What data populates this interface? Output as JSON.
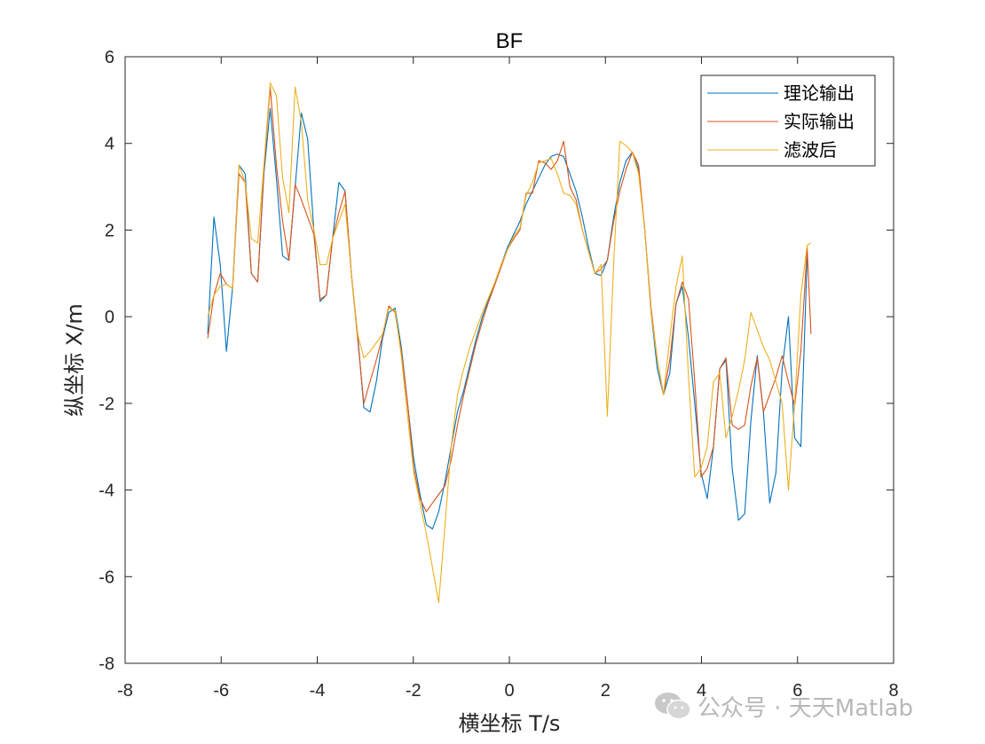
{
  "chart_data": {
    "type": "line",
    "title": "BF",
    "xlabel": "横坐标 T/s",
    "ylabel": "纵坐标 X/m",
    "xlim": [
      -8,
      8
    ],
    "ylim": [
      -8,
      6
    ],
    "xticks": [
      -8,
      -6,
      -4,
      -2,
      0,
      2,
      4,
      6,
      8
    ],
    "yticks": [
      -8,
      -6,
      -4,
      -2,
      0,
      2,
      4,
      6
    ],
    "xtick_labels": [
      "-8",
      "-6",
      "-4",
      "-2",
      "0",
      "2",
      "4",
      "6",
      "8"
    ],
    "ytick_labels": [
      "-8",
      "-6",
      "-4",
      "-2",
      "0",
      "2",
      "4",
      "6"
    ],
    "grid": false,
    "legend_position": "top-right",
    "series": [
      {
        "name": "理论输出",
        "color": "#0072BD",
        "x": [
          -6.28,
          -6.15,
          -6.02,
          -5.89,
          -5.76,
          -5.63,
          -5.5,
          -5.37,
          -5.24,
          -5.11,
          -4.98,
          -4.85,
          -4.72,
          -4.59,
          -4.46,
          -4.33,
          -4.2,
          -4.07,
          -3.94,
          -3.81,
          -3.68,
          -3.55,
          -3.42,
          -3.29,
          -3.16,
          -3.03,
          -2.9,
          -2.77,
          -2.64,
          -2.51,
          -2.38,
          -2.25,
          -2.12,
          -1.99,
          -1.86,
          -1.73,
          -1.6,
          -1.47,
          -1.34,
          -1.21,
          -1.08,
          -0.95,
          -0.82,
          -0.69,
          -0.56,
          -0.43,
          -0.3,
          -0.17,
          -0.04,
          0.09,
          0.22,
          0.35,
          0.48,
          0.61,
          0.74,
          0.87,
          1.0,
          1.13,
          1.26,
          1.39,
          1.52,
          1.65,
          1.78,
          1.91,
          2.04,
          2.17,
          2.3,
          2.43,
          2.56,
          2.69,
          2.82,
          2.95,
          3.08,
          3.21,
          3.34,
          3.47,
          3.6,
          3.73,
          3.86,
          3.99,
          4.12,
          4.25,
          4.38,
          4.51,
          4.64,
          4.77,
          4.9,
          5.03,
          5.16,
          5.29,
          5.42,
          5.55,
          5.68,
          5.81,
          5.94,
          6.07,
          6.2
        ],
        "y": [
          -0.4,
          2.3,
          1.2,
          -0.8,
          0.7,
          3.5,
          3.3,
          1.0,
          0.8,
          3.3,
          4.8,
          3.2,
          1.4,
          1.3,
          3.0,
          4.7,
          4.1,
          2.0,
          0.35,
          0.5,
          1.8,
          3.1,
          2.9,
          1.0,
          -0.4,
          -2.1,
          -2.2,
          -1.5,
          -0.5,
          0.1,
          0.2,
          -0.7,
          -2.0,
          -3.3,
          -4.1,
          -4.8,
          -4.9,
          -4.5,
          -3.8,
          -3.0,
          -2.2,
          -1.7,
          -1.1,
          -0.5,
          0.0,
          0.4,
          0.8,
          1.2,
          1.6,
          1.9,
          2.2,
          2.6,
          2.9,
          3.2,
          3.5,
          3.7,
          3.75,
          3.7,
          3.3,
          2.9,
          2.3,
          1.6,
          1.0,
          0.95,
          1.3,
          2.3,
          3.1,
          3.6,
          3.8,
          3.4,
          2.0,
          0.1,
          -1.2,
          -1.8,
          -1.3,
          0.3,
          0.7,
          -0.5,
          -2.0,
          -3.6,
          -4.2,
          -3.0,
          -1.2,
          -1.0,
          -3.5,
          -4.7,
          -4.55,
          -2.4,
          -0.9,
          -2.2,
          -4.3,
          -3.6,
          -1.2,
          0.0,
          -2.8,
          -3.0,
          1.4
        ]
      },
      {
        "name": "实际输出",
        "color": "#D95319",
        "x": [
          -6.28,
          -6.15,
          -6.02,
          -5.89,
          -5.76,
          -5.63,
          -5.5,
          -5.37,
          -5.24,
          -5.11,
          -4.98,
          -4.85,
          -4.72,
          -4.59,
          -4.46,
          -4.33,
          -4.2,
          -4.07,
          -3.94,
          -3.81,
          -3.68,
          -3.55,
          -3.42,
          -3.29,
          -3.16,
          -3.03,
          -2.9,
          -2.77,
          -2.64,
          -2.51,
          -2.38,
          -2.25,
          -2.12,
          -1.99,
          -1.86,
          -1.73,
          -1.6,
          -1.47,
          -1.34,
          -1.21,
          -1.08,
          -0.95,
          -0.82,
          -0.69,
          -0.56,
          -0.43,
          -0.3,
          -0.17,
          -0.04,
          0.09,
          0.22,
          0.35,
          0.48,
          0.61,
          0.74,
          0.87,
          1.0,
          1.13,
          1.26,
          1.39,
          1.52,
          1.65,
          1.78,
          1.91,
          2.04,
          2.17,
          2.3,
          2.43,
          2.56,
          2.69,
          2.82,
          2.95,
          3.08,
          3.21,
          3.34,
          3.47,
          3.6,
          3.73,
          3.86,
          3.99,
          4.12,
          4.25,
          4.38,
          4.51,
          4.64,
          4.77,
          4.9,
          5.03,
          5.16,
          5.29,
          5.42,
          5.55,
          5.68,
          5.81,
          5.94,
          6.07,
          6.2,
          6.28
        ],
        "y": [
          -0.5,
          0.5,
          1.0,
          0.75,
          0.65,
          3.3,
          3.1,
          1.0,
          0.8,
          3.4,
          5.3,
          3.5,
          2.2,
          1.3,
          3.05,
          2.7,
          2.3,
          1.9,
          0.4,
          0.5,
          1.8,
          2.4,
          2.9,
          1.0,
          -0.5,
          -2.0,
          -1.5,
          -1.0,
          -0.45,
          0.25,
          0.1,
          -0.8,
          -2.0,
          -3.5,
          -4.2,
          -4.5,
          -4.3,
          -4.1,
          -3.9,
          -3.3,
          -2.5,
          -1.8,
          -1.2,
          -0.6,
          -0.1,
          0.35,
          0.75,
          1.15,
          1.55,
          1.8,
          2.0,
          2.85,
          2.85,
          3.6,
          3.55,
          3.4,
          3.6,
          4.05,
          3.0,
          2.7,
          2.0,
          1.5,
          1.0,
          1.1,
          1.3,
          2.2,
          2.9,
          3.4,
          3.8,
          3.5,
          2.0,
          0.2,
          -1.0,
          -1.8,
          -1.0,
          0.3,
          0.8,
          0.4,
          -1.5,
          -3.7,
          -3.5,
          -3.0,
          -1.2,
          -0.95,
          -2.5,
          -2.6,
          -2.5,
          -1.6,
          -0.95,
          -2.2,
          -1.8,
          -1.4,
          -0.9,
          -1.5,
          -2.05,
          -0.8,
          1.6,
          -0.4
        ]
      },
      {
        "name": "滤波后",
        "color": "#EDB120",
        "x": [
          -6.28,
          -6.15,
          -6.02,
          -5.89,
          -5.76,
          -5.63,
          -5.5,
          -5.37,
          -5.24,
          -5.11,
          -4.98,
          -4.85,
          -4.72,
          -4.59,
          -4.46,
          -4.33,
          -4.2,
          -4.07,
          -3.94,
          -3.81,
          -3.68,
          -3.55,
          -3.42,
          -3.29,
          -3.16,
          -3.03,
          -2.9,
          -2.77,
          -2.64,
          -2.51,
          -2.38,
          -2.25,
          -2.12,
          -1.99,
          -1.86,
          -1.73,
          -1.6,
          -1.47,
          -1.34,
          -1.21,
          -1.08,
          -0.95,
          -0.82,
          -0.69,
          -0.56,
          -0.43,
          -0.3,
          -0.17,
          -0.04,
          0.09,
          0.22,
          0.35,
          0.48,
          0.61,
          0.74,
          0.87,
          1.0,
          1.13,
          1.26,
          1.39,
          1.52,
          1.65,
          1.78,
          1.91,
          2.04,
          2.17,
          2.3,
          2.43,
          2.56,
          2.69,
          2.82,
          2.95,
          3.08,
          3.21,
          3.34,
          3.47,
          3.6,
          3.73,
          3.86,
          3.99,
          4.12,
          4.25,
          4.38,
          4.51,
          4.64,
          4.77,
          4.9,
          5.03,
          5.16,
          5.29,
          5.42,
          5.55,
          5.68,
          5.81,
          5.94,
          6.07,
          6.2,
          6.28
        ],
        "y": [
          0.0,
          0.5,
          0.7,
          0.75,
          0.65,
          3.5,
          3.1,
          1.8,
          1.7,
          3.5,
          5.4,
          5.1,
          3.2,
          2.4,
          5.3,
          4.5,
          2.7,
          2.0,
          1.2,
          1.2,
          1.8,
          2.2,
          2.6,
          1.0,
          -0.4,
          -0.95,
          -0.8,
          -0.6,
          -0.4,
          0.2,
          0.15,
          -0.9,
          -2.3,
          -3.6,
          -4.3,
          -5.0,
          -5.8,
          -6.6,
          -4.8,
          -3.0,
          -1.8,
          -1.2,
          -0.7,
          -0.3,
          0.1,
          0.45,
          0.8,
          1.2,
          1.55,
          1.85,
          2.05,
          2.8,
          3.1,
          3.55,
          3.6,
          3.65,
          3.3,
          2.85,
          2.8,
          2.6,
          2.0,
          1.5,
          1.0,
          1.2,
          -2.3,
          1.2,
          4.05,
          3.95,
          3.8,
          3.3,
          2.0,
          0.1,
          -1.0,
          -1.8,
          -0.5,
          0.7,
          1.4,
          -1.4,
          -3.7,
          -3.5,
          -3.0,
          -1.5,
          -1.3,
          -2.8,
          -2.3,
          -1.7,
          -1.0,
          0.1,
          -0.3,
          -0.7,
          -1.0,
          -1.5,
          -2.0,
          -4.0,
          -2.0,
          0.5,
          1.65,
          1.7
        ]
      }
    ]
  },
  "watermark": {
    "text": "公众号 · 天天Matlab",
    "icon": "wechat-icon"
  }
}
